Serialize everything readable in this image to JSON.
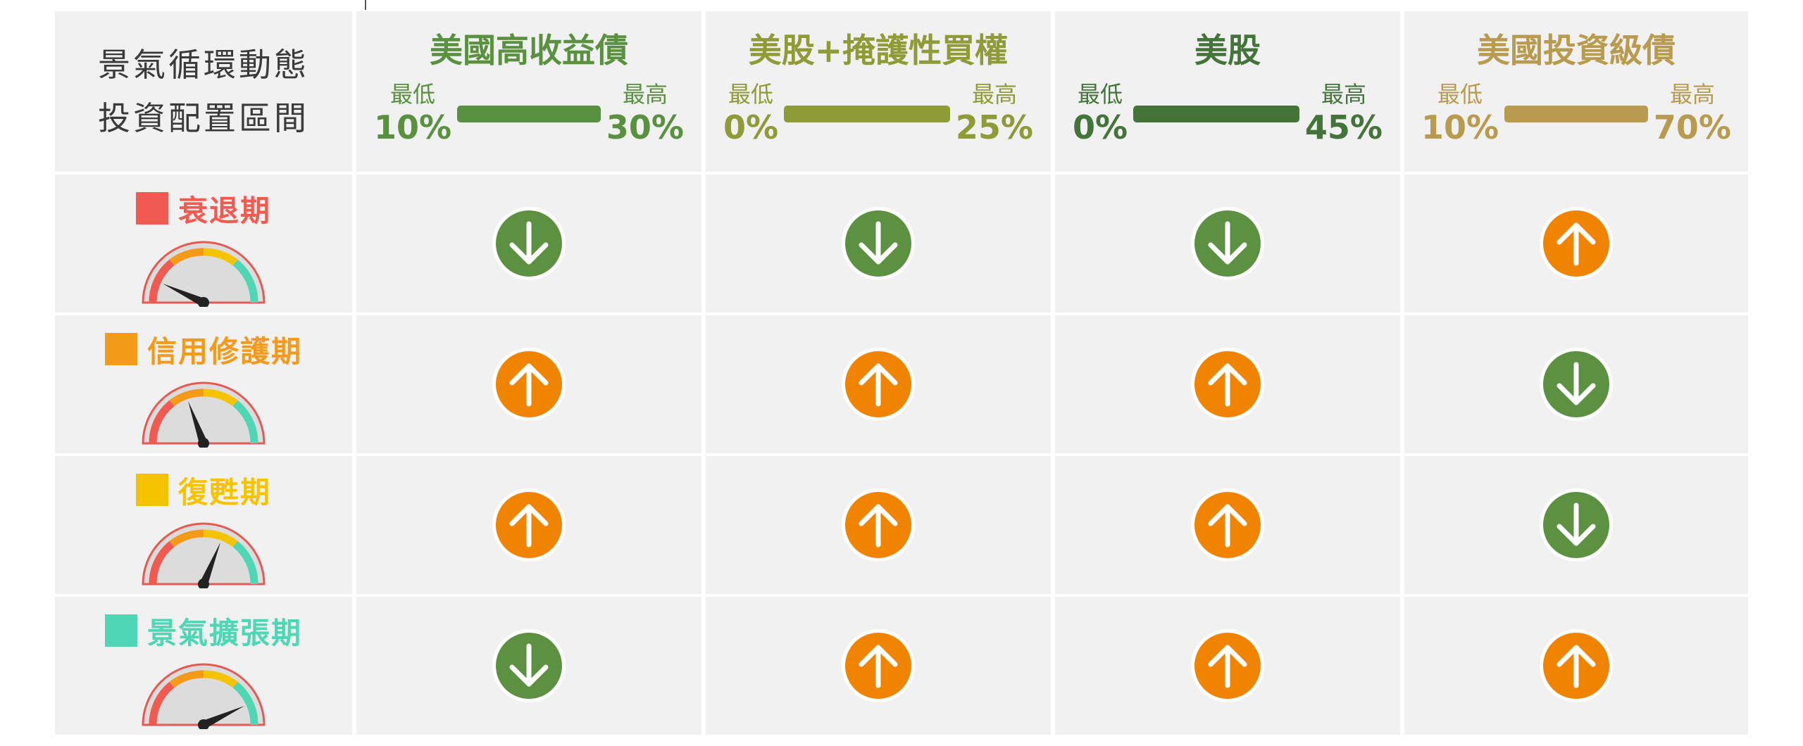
{
  "corner": {
    "line1": "景氣循環動態",
    "line2": "投資配置區間"
  },
  "assets": [
    {
      "title": "美國高收益債",
      "min_label": "最低",
      "min": "10%",
      "max_label": "最高",
      "max": "30%",
      "color": "#5a9140"
    },
    {
      "title": "美股+掩護性買權",
      "min_label": "最低",
      "min": "0%",
      "max_label": "最高",
      "max": "25%",
      "color": "#8f9b36"
    },
    {
      "title": "美股",
      "min_label": "最低",
      "min": "0%",
      "max_label": "最高",
      "max": "45%",
      "color": "#44743a"
    },
    {
      "title": "美國投資級債",
      "min_label": "最低",
      "min": "10%",
      "max_label": "最高",
      "max": "70%",
      "color": "#b89b4f"
    }
  ],
  "phases": [
    {
      "name": "衰退期",
      "color": "#f05a50",
      "needle_angle": -65,
      "signals": [
        "down",
        "down",
        "down",
        "up"
      ]
    },
    {
      "name": "信用修護期",
      "color": "#f39a1b",
      "needle_angle": -20,
      "signals": [
        "up",
        "up",
        "up",
        "down"
      ]
    },
    {
      "name": "復甦期",
      "color": "#f6c300",
      "needle_angle": 22,
      "signals": [
        "up",
        "up",
        "up",
        "down"
      ]
    },
    {
      "name": "景氣擴張期",
      "color": "#4fd6b4",
      "needle_angle": 65,
      "signals": [
        "down",
        "up",
        "up",
        "up"
      ]
    }
  ],
  "signal_colors": {
    "up": "#f08400",
    "down": "#5b9140"
  }
}
